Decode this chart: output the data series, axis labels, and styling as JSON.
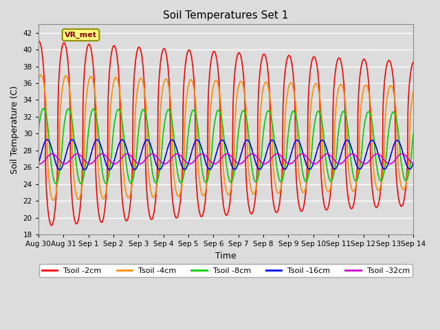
{
  "title": "Soil Temperatures Set 1",
  "xlabel": "Time",
  "ylabel": "Soil Temperature (C)",
  "ylim": [
    18,
    43
  ],
  "yticks": [
    18,
    20,
    22,
    24,
    26,
    28,
    30,
    32,
    34,
    36,
    38,
    40,
    42
  ],
  "xlim": [
    0,
    15
  ],
  "series": {
    "Tsoil -2cm": {
      "color": "#FF0000",
      "lw": 1.2
    },
    "Tsoil -4cm": {
      "color": "#FF8C00",
      "lw": 1.2
    },
    "Tsoil -8cm": {
      "color": "#00CC00",
      "lw": 1.2
    },
    "Tsoil -16cm": {
      "color": "#0000EE",
      "lw": 1.2
    },
    "Tsoil -32cm": {
      "color": "#CC00CC",
      "lw": 1.2
    }
  },
  "annotation_text": "VR_met",
  "bg_color": "#DCDCDC",
  "plot_bg_color": "#DCDCDC",
  "grid_color": "#FFFFFF",
  "tick_labels": [
    "Aug 30",
    "Aug 31",
    "Sep 1",
    "Sep 2",
    "Sep 3",
    "Sep 4",
    "Sep 5",
    "Sep 6",
    "Sep 7",
    "Sep 8",
    "Sep 9",
    "Sep 10",
    "Sep 11",
    "Sep 12",
    "Sep 13",
    "Sep 14"
  ],
  "tick_positions": [
    0,
    1,
    2,
    3,
    4,
    5,
    6,
    7,
    8,
    9,
    10,
    11,
    12,
    13,
    14,
    15
  ]
}
